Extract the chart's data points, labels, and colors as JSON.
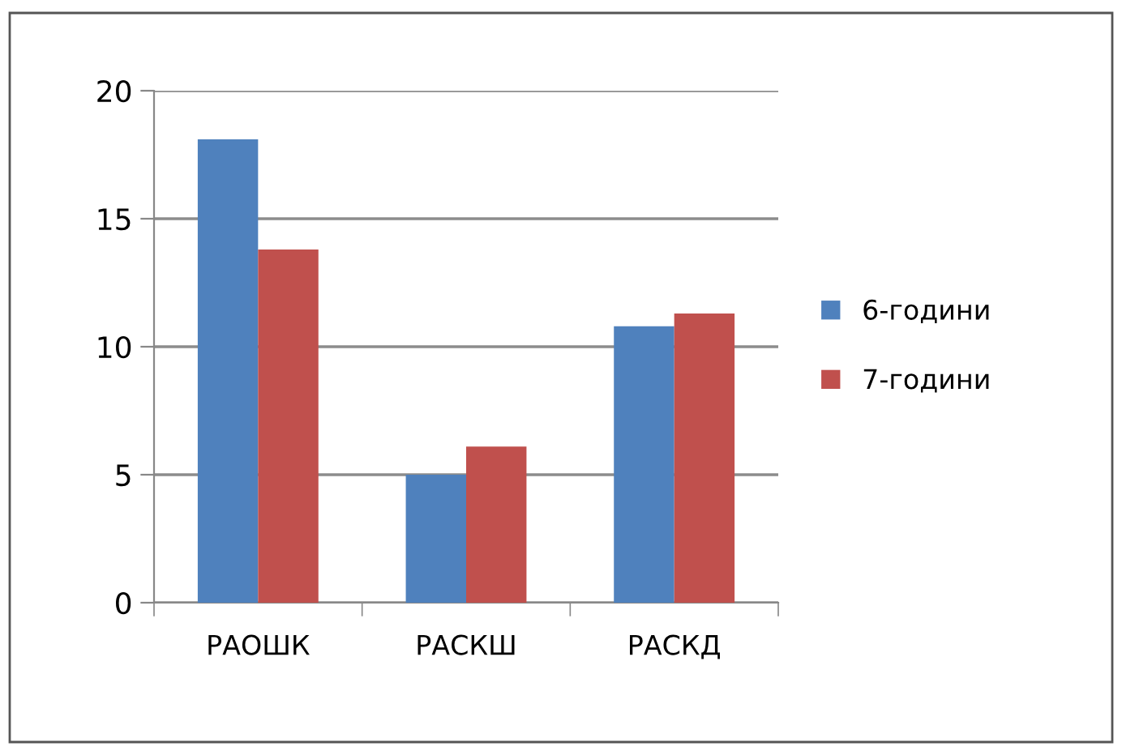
{
  "chart_data": {
    "type": "bar",
    "categories": [
      "РАОШК",
      "РАСКШ",
      "РАСКД"
    ],
    "series": [
      {
        "name": "6-години",
        "color": "#4f81bd",
        "values": [
          18.1,
          5.0,
          10.8
        ]
      },
      {
        "name": "7-години",
        "color": "#c0504d",
        "values": [
          13.8,
          6.1,
          11.3
        ]
      }
    ],
    "ylim": [
      0,
      20
    ],
    "yticks": [
      0,
      5,
      10,
      15,
      20
    ],
    "grid": "y",
    "legend": "right"
  }
}
